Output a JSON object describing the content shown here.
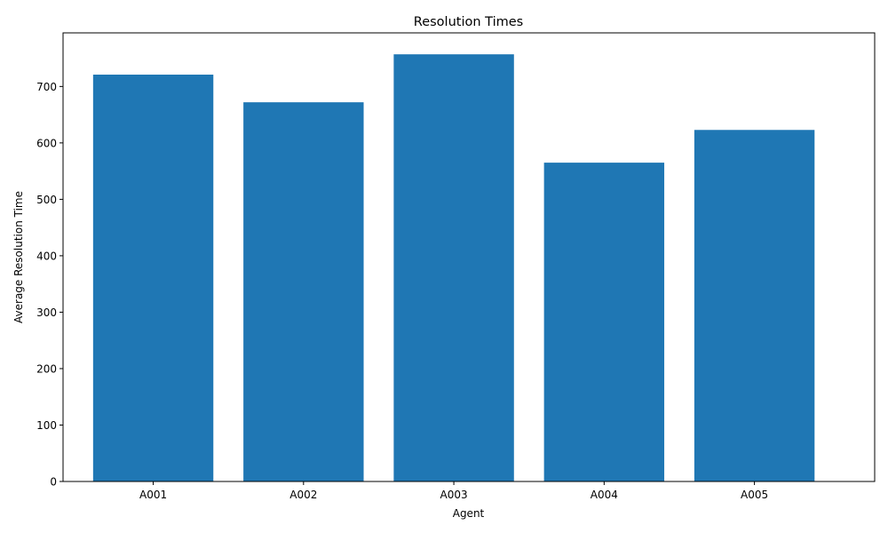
{
  "chart_data": {
    "type": "bar",
    "title": "Resolution Times",
    "xlabel": "Agent",
    "ylabel": "Average Resolution Time",
    "categories": [
      "A001",
      "A002",
      "A003",
      "A004",
      "A005"
    ],
    "values": [
      721,
      672,
      757,
      565,
      623
    ],
    "ylim": [
      0,
      795
    ],
    "yticks": [
      0,
      100,
      200,
      300,
      400,
      500,
      600,
      700
    ],
    "bar_color": "#1f77b4",
    "grid": false,
    "legend": "none"
  }
}
